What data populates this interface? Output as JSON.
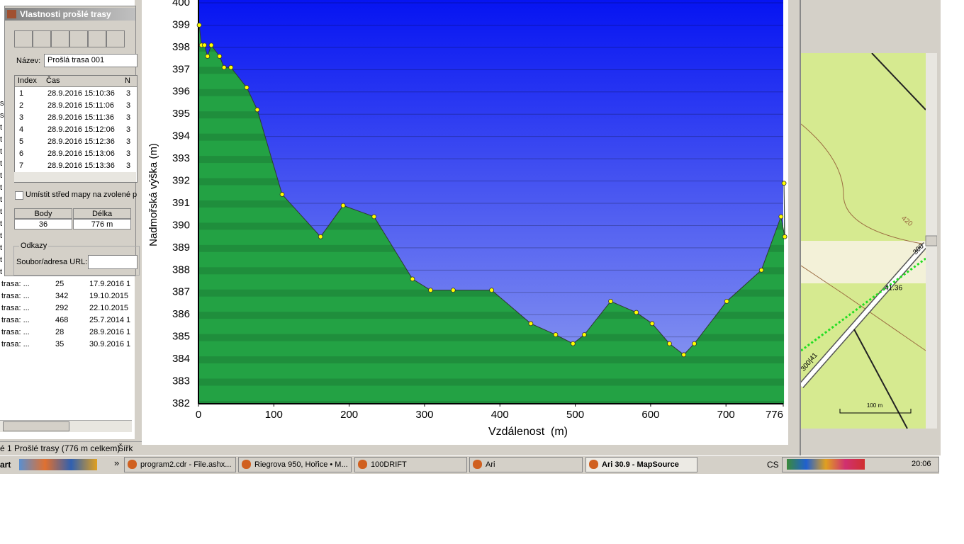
{
  "dialog": {
    "title": "Vlastnosti prošlé trasy",
    "name_label": "Název:",
    "name_value": "Prošlá trasa 001",
    "columns": [
      "Index",
      "Čas",
      "N"
    ],
    "rows": [
      [
        "1",
        "28.9.2016 15:10:36",
        "3"
      ],
      [
        "2",
        "28.9.2016 15:11:06",
        "3"
      ],
      [
        "3",
        "28.9.2016 15:11:36",
        "3"
      ],
      [
        "4",
        "28.9.2016 15:12:06",
        "3"
      ],
      [
        "5",
        "28.9.2016 15:12:36",
        "3"
      ],
      [
        "6",
        "28.9.2016 15:13:06",
        "3"
      ],
      [
        "7",
        "28.9.2016 15:13:36",
        "3"
      ]
    ],
    "center_checkbox": "Umístit střed mapy na zvolené p",
    "stats_columns": [
      "Body",
      "Délka"
    ],
    "stats_values": [
      "36",
      "776 m"
    ],
    "links_group": "Odkazy",
    "url_label": "Soubor/adresa URL:"
  },
  "list_edge": [
    "s",
    "s",
    "t",
    "t",
    "t",
    "t",
    "t",
    "t",
    "t",
    "t",
    "t",
    "t",
    "t",
    "t",
    "t"
  ],
  "track_list": {
    "rows": [
      [
        "trasa: ...",
        "25",
        "17.9.2016 1"
      ],
      [
        "trasa: ...",
        "342",
        "19.10.2015"
      ],
      [
        "trasa: ...",
        "292",
        "22.10.2015"
      ],
      [
        "trasa: ...",
        "468",
        "25.7.2014 1"
      ],
      [
        "trasa: ...",
        "28",
        "28.9.2016 1"
      ],
      [
        "trasa: ...",
        "35",
        "30.9.2016 1"
      ]
    ]
  },
  "status_bar": [
    "é 1 Prošlé trasy (776 m celkem)",
    "Šířk"
  ],
  "chart_data": {
    "type": "area",
    "x_label": "Vzdálenost  (m)",
    "y_label": "Nadmořská výška (m)",
    "x": [
      1,
      4,
      8,
      12,
      17,
      28,
      34,
      43,
      64,
      78,
      111,
      162,
      192,
      233,
      284,
      308,
      338,
      389,
      441,
      474,
      497,
      512,
      547,
      581,
      602,
      625,
      644,
      658,
      701,
      747,
      773,
      778,
      777
    ],
    "series": [
      {
        "color": "#23a244",
        "line_color": "#2f3a2f",
        "marker_color": "#ffff00",
        "values": [
          399.0,
          398.1,
          398.1,
          397.6,
          398.1,
          397.6,
          397.1,
          397.1,
          396.2,
          395.2,
          391.4,
          389.5,
          390.9,
          390.4,
          387.6,
          387.1,
          387.1,
          387.1,
          385.6,
          385.1,
          384.7,
          385.1,
          386.6,
          386.1,
          385.6,
          384.7,
          384.2,
          384.7,
          386.6,
          388.0,
          390.4,
          389.5,
          391.9
        ]
      }
    ],
    "xlim": [
      0,
      776
    ],
    "xticks": [
      0,
      100,
      200,
      300,
      400,
      500,
      600,
      700,
      776
    ],
    "ylim": [
      382,
      400
    ],
    "yticks": [
      382,
      383,
      384,
      385,
      386,
      387,
      388,
      389,
      390,
      391,
      392,
      393,
      394,
      395,
      396,
      397,
      398,
      399,
      400
    ],
    "grid": true,
    "background_top": "#0614f2",
    "background_bottom": "#92a0f0"
  },
  "map": {
    "contour_label": "420",
    "road_label_1": "300",
    "road_label_2": "41.36",
    "road_label_3": "300|41",
    "scale": "100 m"
  },
  "taskbar": {
    "start": "art",
    "more": "»",
    "tasks": [
      "program2.cdr - File.ashx...",
      "Riegrova 950, Hořice • M...",
      "100DRIFT",
      "Ari",
      "Ari 30.9 - MapSource"
    ],
    "language": "CS",
    "clock": "20:06"
  }
}
